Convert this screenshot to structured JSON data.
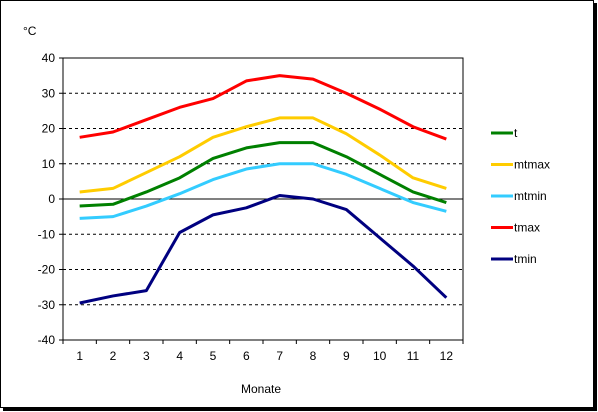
{
  "chart_data": {
    "type": "line",
    "title": "",
    "xlabel": "Monate",
    "ylabel": "°C",
    "categories": [
      "1",
      "2",
      "3",
      "4",
      "5",
      "6",
      "7",
      "8",
      "9",
      "10",
      "11",
      "12"
    ],
    "y_ticks": [
      "40",
      "30",
      "20",
      "10",
      "0",
      "-10",
      "-20",
      "-30",
      "-40"
    ],
    "ylim": [
      -40,
      40
    ],
    "grid": "horizontal-dashed",
    "legend_position": "right",
    "series": [
      {
        "name": "t",
        "color": "#008000",
        "values": [
          -2,
          -1.5,
          2,
          6,
          11.5,
          14.5,
          16,
          16,
          12,
          7,
          2,
          -1
        ]
      },
      {
        "name": "mtmax",
        "color": "#FFCC00",
        "values": [
          2,
          3,
          7.5,
          12,
          17.5,
          20.5,
          23,
          23,
          18.5,
          12.5,
          6,
          3
        ]
      },
      {
        "name": "mtmin",
        "color": "#33CCFF",
        "values": [
          -5.5,
          -5,
          -2,
          1.5,
          5.5,
          8.5,
          10,
          10,
          7,
          3,
          -1,
          -3.5
        ]
      },
      {
        "name": "tmax",
        "color": "#FF0000",
        "values": [
          17.5,
          19,
          22.5,
          26,
          28.5,
          33.5,
          35,
          34,
          30,
          25.5,
          20.5,
          17
        ]
      },
      {
        "name": "tmin",
        "color": "#000080",
        "values": [
          -29.5,
          -27.5,
          -26,
          -9.5,
          -4.5,
          -2.5,
          1,
          0,
          -3,
          -11,
          -19,
          -28
        ]
      }
    ]
  }
}
